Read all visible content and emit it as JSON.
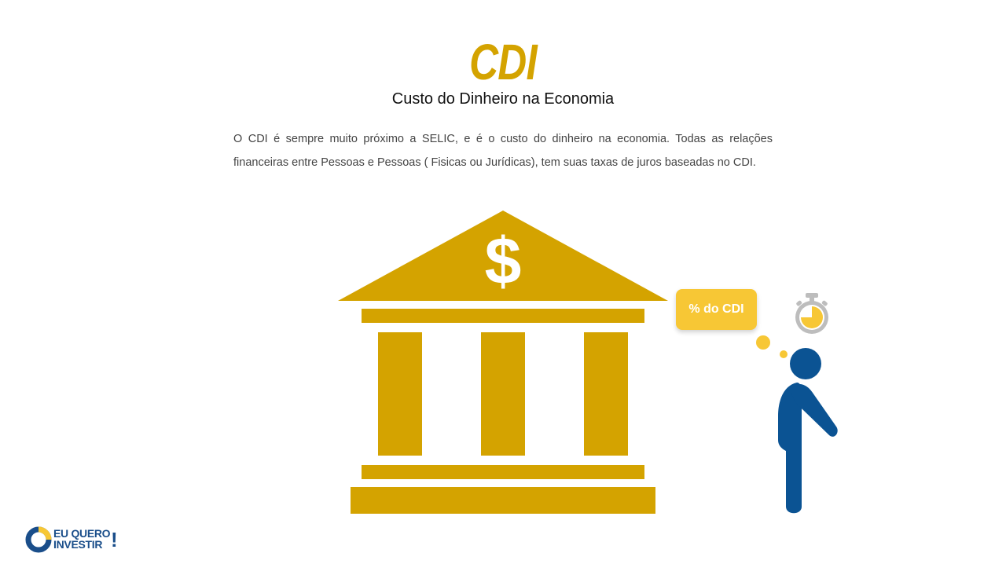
{
  "slide": {
    "title": "CDI",
    "subtitle": "Custo do Dinheiro na Economia",
    "paragraph": "O CDI é sempre muito próximo a SELIC, e é o custo do dinheiro na economia. Todas as relações financeiras entre Pessoas e Pessoas ( Fisicas ou Jurídicas), tem suas taxas de juros baseadas no CDI."
  },
  "illustration": {
    "bank_symbol": "$",
    "thought_bubble": "% do CDI",
    "icons": [
      "bank-icon",
      "dollar-sign-icon",
      "thought-bubble-icon",
      "stopwatch-icon",
      "person-icon"
    ]
  },
  "logo": {
    "line1": "EU QUERO",
    "line2": "INVESTIR",
    "mark": "!"
  },
  "colors": {
    "gold": "#D4A300",
    "bubble": "#F7C735",
    "blue": "#0B5393",
    "gray": "#BDBDBD",
    "text": "#444444"
  }
}
